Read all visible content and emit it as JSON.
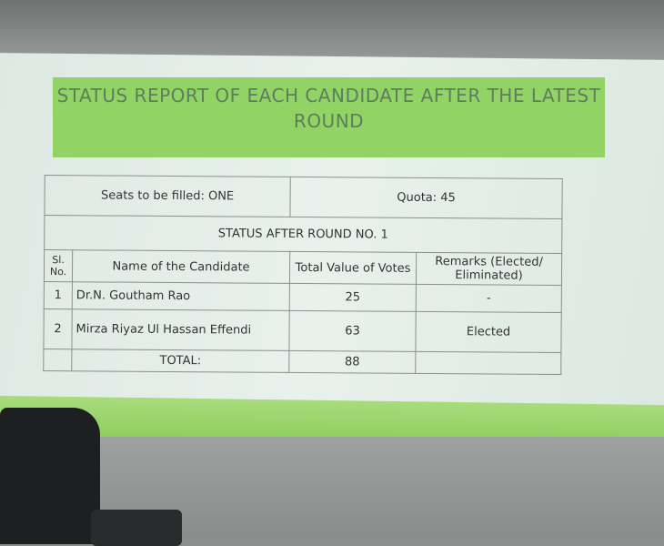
{
  "title": "STATUS REPORT OF EACH CANDIDATE AFTER THE LATEST ROUND",
  "seats": "Seats to be filled: ONE",
  "quota": "Quota: 45",
  "round": "STATUS AFTER ROUND NO. 1",
  "headers": {
    "sl": "Sl. No.",
    "name": "Name of the Candidate",
    "votes": "Total Value of Votes",
    "remarks": "Remarks (Elected/ Eliminated)"
  },
  "rows": [
    {
      "sl": "1",
      "name": "Dr.N. Goutham Rao",
      "votes": "25",
      "remarks": "-"
    },
    {
      "sl": "2",
      "name": "Mirza Riyaz Ul Hassan Effendi",
      "votes": "63",
      "remarks": "Elected"
    }
  ],
  "total": {
    "label": "TOTAL:",
    "votes": "88"
  },
  "colors": {
    "banner": "#92d365",
    "slide": "#e3ede8"
  }
}
